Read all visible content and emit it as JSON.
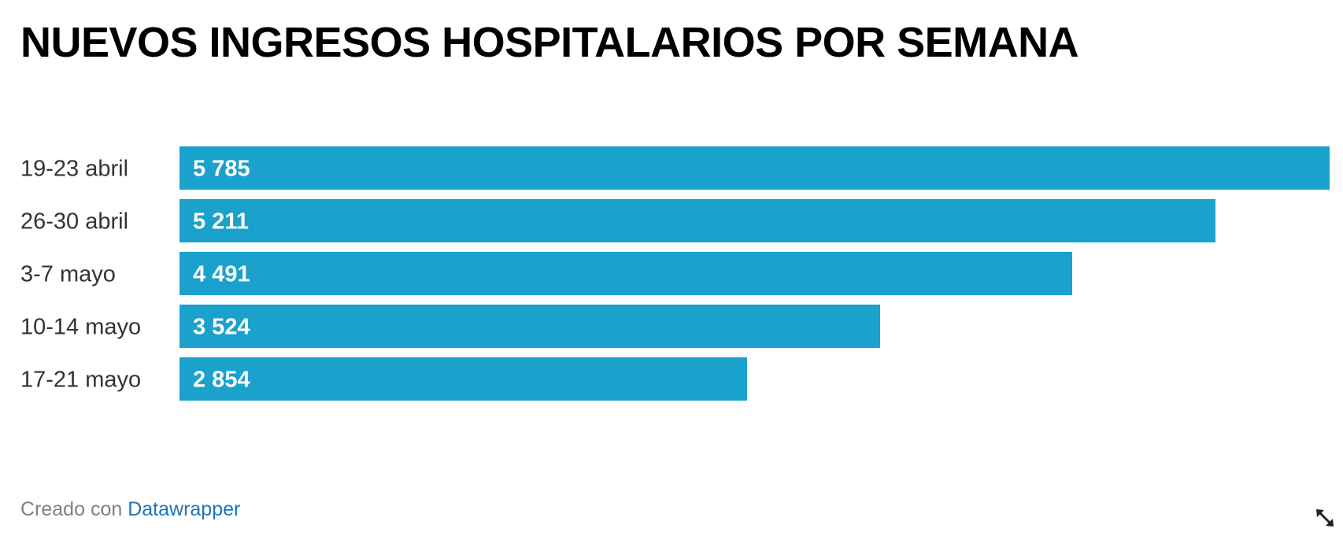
{
  "title": "NUEVOS INGRESOS HOSPITALARIOS POR SEMANA",
  "footer": {
    "prefix": "Creado con",
    "link": "Datawrapper"
  },
  "icons": {
    "resize": "resize-diagonal-icon"
  },
  "colors": {
    "bar": "#1aa1cc",
    "bar_label": "#ffffff",
    "category_label": "#333333",
    "link": "#1f74b8"
  },
  "chart_data": {
    "type": "bar",
    "orientation": "horizontal",
    "categories": [
      "19-23 abril",
      "26-30 abril",
      "3-7 mayo",
      "10-14 mayo",
      "17-21 mayo"
    ],
    "values": [
      5785,
      5211,
      4491,
      3524,
      2854
    ],
    "value_labels": [
      "5 785",
      "5 211",
      "4 491",
      "3 524",
      "2 854"
    ],
    "xlim": [
      0,
      5785
    ],
    "grid": false,
    "legend": "none"
  }
}
